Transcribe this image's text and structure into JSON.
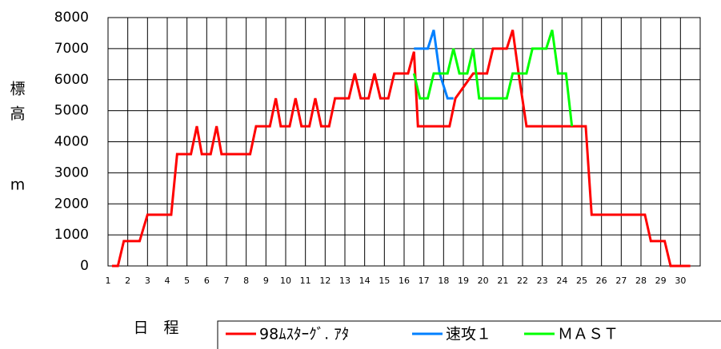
{
  "chart_data": {
    "type": "line",
    "ylabel": [
      "標",
      "高",
      "m"
    ],
    "xlabel": "日　程",
    "xlim": [
      1,
      31
    ],
    "xticks": [
      1,
      2,
      3,
      4,
      5,
      6,
      7,
      8,
      9,
      10,
      11,
      12,
      13,
      14,
      15,
      16,
      17,
      18,
      19,
      20,
      21,
      22,
      23,
      24,
      25,
      26,
      27,
      28,
      29,
      30
    ],
    "ylim": [
      0,
      8000
    ],
    "yticks": [
      0,
      1000,
      2000,
      3000,
      4000,
      5000,
      6000,
      7000,
      8000
    ],
    "grid": true,
    "series": [
      {
        "name": "98ﾑｽﾀｰｸﾞ. ｱﾀ",
        "color": "#ff0000",
        "x": [
          1.2,
          1.5,
          1.8,
          2.6,
          3,
          4.2,
          4.5,
          5.2,
          5.5,
          5.75,
          6.2,
          6.5,
          6.75,
          8.2,
          8.5,
          9.2,
          9.5,
          9.75,
          10.2,
          10.5,
          10.8,
          11.2,
          11.5,
          11.8,
          12.2,
          12.5,
          13.2,
          13.5,
          13.8,
          14.2,
          14.5,
          14.8,
          15.2,
          15.5,
          16.2,
          16.5,
          16.7,
          18.3,
          18.6,
          19.5,
          20.2,
          20.5,
          21.2,
          21.5,
          21.8,
          22.2,
          25.2,
          25.5,
          28.2,
          28.5,
          29.2,
          29.5,
          30.5
        ],
        "values": [
          0,
          0,
          800,
          800,
          1650,
          1650,
          3600,
          3600,
          4500,
          3600,
          3600,
          4500,
          3600,
          3600,
          4500,
          4500,
          5400,
          4500,
          4500,
          5400,
          4500,
          4500,
          5400,
          4500,
          4500,
          5400,
          5400,
          6200,
          5400,
          5400,
          6200,
          5400,
          5400,
          6200,
          6200,
          6900,
          4500,
          4500,
          5400,
          6200,
          6200,
          7000,
          7000,
          7600,
          6200,
          4500,
          4500,
          1650,
          1650,
          800,
          800,
          0,
          0
        ]
      },
      {
        "name": "速攻１",
        "color": "#0080ff",
        "x": [
          16.5,
          17.2,
          17.5,
          17.8,
          18.2,
          18.5
        ],
        "values": [
          7000,
          7000,
          7600,
          6200,
          5400,
          5400
        ]
      },
      {
        "name": "ＭＡＳＴ",
        "color": "#00ff00",
        "x": [
          16.5,
          16.8,
          17.2,
          17.5,
          18.2,
          18.5,
          18.8,
          19.2,
          19.5,
          19.8,
          21.2,
          21.5,
          22.2,
          22.5,
          23.2,
          23.5,
          23.8,
          24.2,
          24.5
        ],
        "values": [
          6200,
          5400,
          5400,
          6200,
          6200,
          7000,
          6200,
          6200,
          7000,
          5400,
          5400,
          6200,
          6200,
          7000,
          7000,
          7600,
          6200,
          6200,
          4500
        ]
      }
    ]
  }
}
